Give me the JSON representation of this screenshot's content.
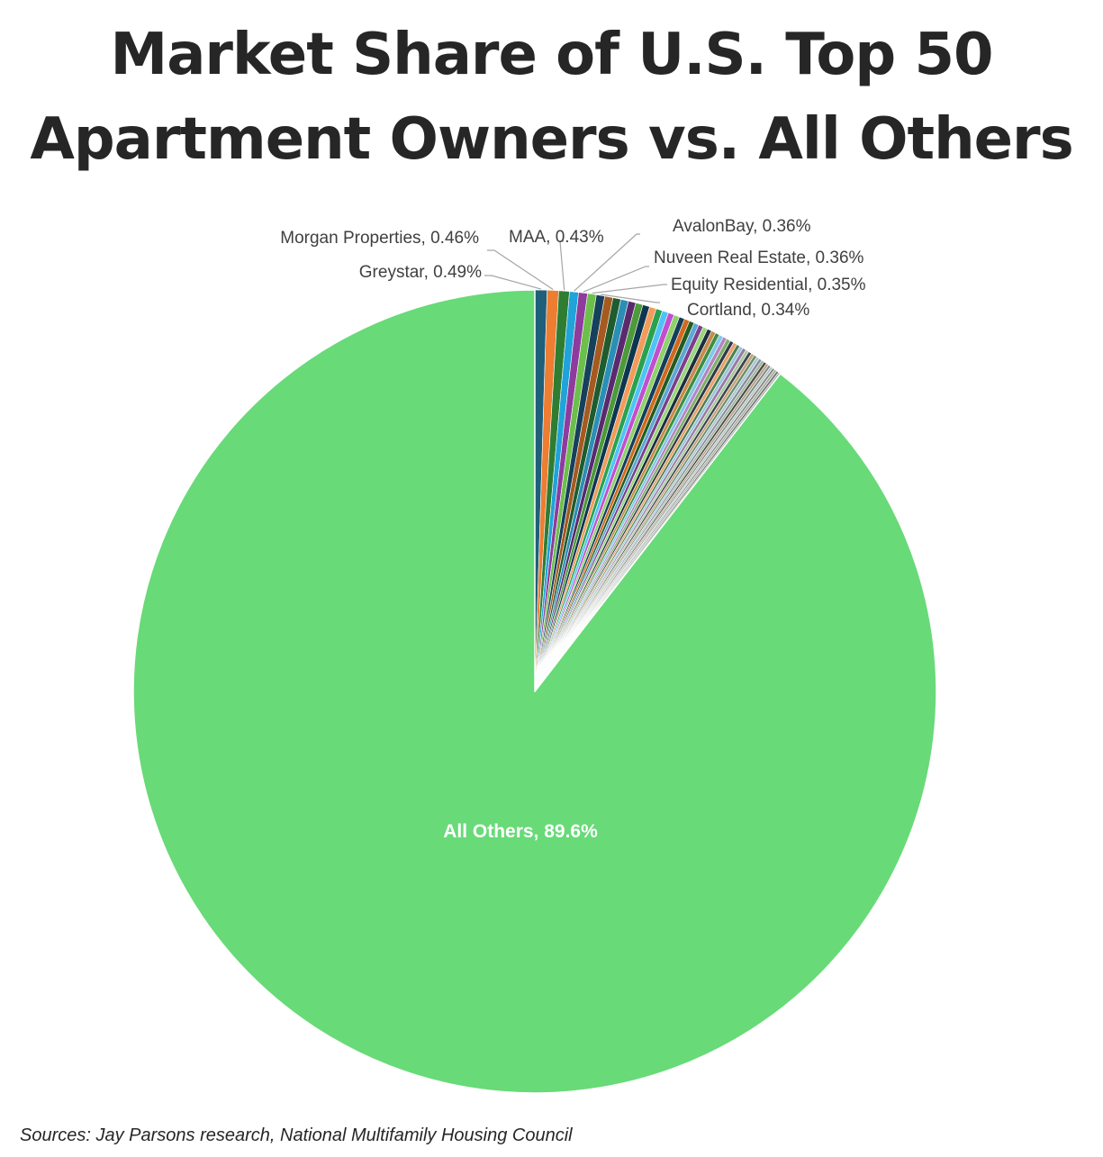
{
  "chart_data": {
    "type": "pie",
    "title_lines": [
      "Market Share of U.S. Top 50",
      "Apartment Owners vs. All Others"
    ],
    "start_angle_deg": 0,
    "direction": "clockwise",
    "slices": [
      {
        "label": "Greystar",
        "value": 0.49,
        "color": "#1f5f7a",
        "data_label": "Greystar, 0.49%"
      },
      {
        "label": "Morgan Properties",
        "value": 0.46,
        "color": "#ed7d31",
        "data_label": "Morgan Properties, 0.46%"
      },
      {
        "label": "MAA",
        "value": 0.43,
        "color": "#2e7d32",
        "data_label": "MAA, 0.43%"
      },
      {
        "label": "AvalonBay",
        "value": 0.36,
        "color": "#1fa3d9",
        "data_label": "AvalonBay, 0.36%"
      },
      {
        "label": "Nuveen Real Estate",
        "value": 0.36,
        "color": "#8e3b9e",
        "data_label": "Nuveen Real Estate, 0.36%"
      },
      {
        "label": "Equity Residential",
        "value": 0.35,
        "color": "#6cbf4b",
        "data_label": "Equity Residential, 0.35%"
      },
      {
        "label": "Cortland",
        "value": 0.34,
        "color": "#16405b",
        "data_label": "Cortland, 0.34%"
      },
      {
        "label": "",
        "value": 0.33,
        "color": "#a65a1f",
        "data_label": ""
      },
      {
        "label": "",
        "value": 0.32,
        "color": "#1e5c2e",
        "data_label": ""
      },
      {
        "label": "",
        "value": 0.31,
        "color": "#2b8fb5",
        "data_label": ""
      },
      {
        "label": "",
        "value": 0.3,
        "color": "#5a2a6e",
        "data_label": ""
      },
      {
        "label": "",
        "value": 0.29,
        "color": "#4c9a3a",
        "data_label": ""
      },
      {
        "label": "",
        "value": 0.28,
        "color": "#0e3550",
        "data_label": ""
      },
      {
        "label": "",
        "value": 0.27,
        "color": "#f29b5b",
        "data_label": ""
      },
      {
        "label": "",
        "value": 0.26,
        "color": "#2aa14f",
        "data_label": ""
      },
      {
        "label": "",
        "value": 0.25,
        "color": "#4fc3f7",
        "data_label": ""
      },
      {
        "label": "",
        "value": 0.24,
        "color": "#c04fd0",
        "data_label": ""
      },
      {
        "label": "",
        "value": 0.23,
        "color": "#8fd16a",
        "data_label": ""
      },
      {
        "label": "",
        "value": 0.22,
        "color": "#143e5c",
        "data_label": ""
      },
      {
        "label": "",
        "value": 0.21,
        "color": "#d2691e",
        "data_label": ""
      },
      {
        "label": "",
        "value": 0.2,
        "color": "#245c1e",
        "data_label": ""
      },
      {
        "label": "",
        "value": 0.2,
        "color": "#5ba7d6",
        "data_label": ""
      },
      {
        "label": "",
        "value": 0.19,
        "color": "#7b3f8c",
        "data_label": ""
      },
      {
        "label": "",
        "value": 0.19,
        "color": "#9bd67e",
        "data_label": ""
      },
      {
        "label": "",
        "value": 0.18,
        "color": "#1b2f3d",
        "data_label": ""
      },
      {
        "label": "",
        "value": 0.18,
        "color": "#c98a4b",
        "data_label": ""
      },
      {
        "label": "",
        "value": 0.17,
        "color": "#3e8e41",
        "data_label": ""
      },
      {
        "label": "",
        "value": 0.17,
        "color": "#7fc8e8",
        "data_label": ""
      },
      {
        "label": "",
        "value": 0.16,
        "color": "#b584c4",
        "data_label": ""
      },
      {
        "label": "",
        "value": 0.16,
        "color": "#7fb069",
        "data_label": ""
      },
      {
        "label": "",
        "value": 0.15,
        "color": "#2f3b45",
        "data_label": ""
      },
      {
        "label": "",
        "value": 0.15,
        "color": "#e8a36b",
        "data_label": ""
      },
      {
        "label": "",
        "value": 0.14,
        "color": "#4f7f52",
        "data_label": ""
      },
      {
        "label": "",
        "value": 0.14,
        "color": "#98c6dc",
        "data_label": ""
      },
      {
        "label": "",
        "value": 0.14,
        "color": "#9a7aa6",
        "data_label": ""
      },
      {
        "label": "",
        "value": 0.13,
        "color": "#a8c89a",
        "data_label": ""
      },
      {
        "label": "",
        "value": 0.13,
        "color": "#3a4650",
        "data_label": ""
      },
      {
        "label": "",
        "value": 0.13,
        "color": "#c9a27c",
        "data_label": ""
      },
      {
        "label": "",
        "value": 0.12,
        "color": "#6a8f6c",
        "data_label": ""
      },
      {
        "label": "",
        "value": 0.12,
        "color": "#a9c6d3",
        "data_label": ""
      },
      {
        "label": "",
        "value": 0.12,
        "color": "#8d8da0",
        "data_label": ""
      },
      {
        "label": "",
        "value": 0.11,
        "color": "#9fb89a",
        "data_label": ""
      },
      {
        "label": "",
        "value": 0.11,
        "color": "#4a4a4a",
        "data_label": ""
      },
      {
        "label": "",
        "value": 0.11,
        "color": "#b8a58f",
        "data_label": ""
      },
      {
        "label": "",
        "value": 0.1,
        "color": "#7c8c7e",
        "data_label": ""
      },
      {
        "label": "",
        "value": 0.1,
        "color": "#b7c4c9",
        "data_label": ""
      },
      {
        "label": "",
        "value": 0.1,
        "color": "#8a8a8a",
        "data_label": ""
      },
      {
        "label": "",
        "value": 0.1,
        "color": "#a3b39e",
        "data_label": ""
      },
      {
        "label": "",
        "value": 0.09,
        "color": "#6f6f6f",
        "data_label": ""
      },
      {
        "label": "",
        "value": 0.09,
        "color": "#b0b0b0",
        "data_label": ""
      },
      {
        "label": "All Others",
        "value": 89.6,
        "color": "#68da78",
        "data_label": "All Others, 89.6%",
        "label_color": "#ffffff",
        "label_position": "inside"
      }
    ],
    "legend": "none",
    "slice_border_color": "#ffffff",
    "leader_line_color": "#a6a6a6",
    "label_color": "#404040"
  },
  "footer": {
    "source": "Sources: Jay Parsons research, National Multifamily Housing Council"
  }
}
